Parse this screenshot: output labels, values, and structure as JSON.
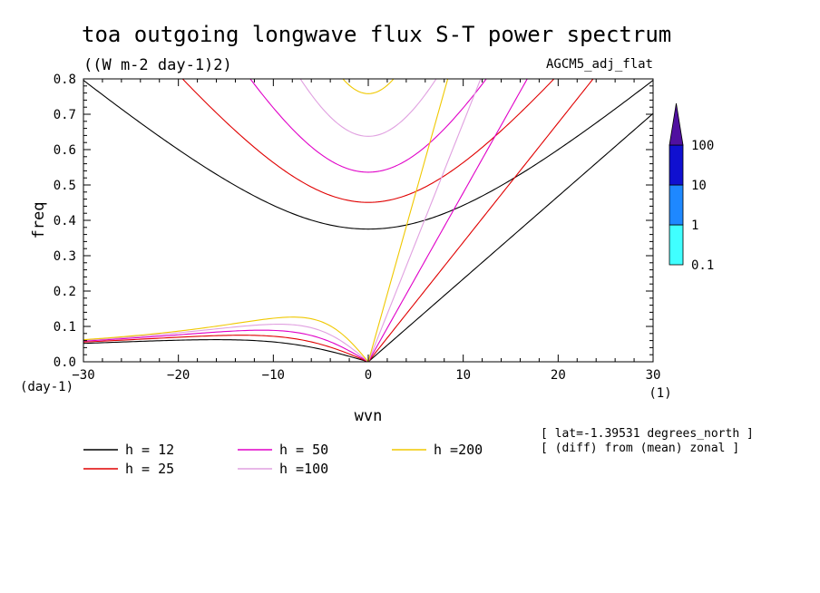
{
  "chart_data": {
    "type": "line",
    "title": "toa outgoing longwave flux S-T power spectrum",
    "subtitle": "((W m-2 day-1)2)",
    "dataset_label": "AGCM5_adj_flat",
    "xlabel": "wvn",
    "ylabel": "freq",
    "x_unit": "(1)",
    "y_unit": "(day-1)",
    "xlim": [
      -30,
      30
    ],
    "ylim": [
      0,
      0.8
    ],
    "x_ticks": [
      "−30",
      "−20",
      "−10",
      "0",
      "10",
      "20",
      "30"
    ],
    "y_ticks": [
      "0.0",
      "0.1",
      "0.2",
      "0.3",
      "0.4",
      "0.5",
      "0.6",
      "0.7",
      "0.8"
    ],
    "grid": false,
    "info_lines": [
      "[ lat=-1.39531 degrees_north ]",
      "[ (diff) from (mean) zonal ]"
    ],
    "series": [
      {
        "name": "h = 12",
        "color": "#000000",
        "h": 12
      },
      {
        "name": "h = 25",
        "color": "#e00000",
        "h": 25
      },
      {
        "name": "h = 50",
        "color": "#e000c8",
        "h": 50
      },
      {
        "name": "h =100",
        "color": "#e0a0e0",
        "h": 100
      },
      {
        "name": "h =200",
        "color": "#f0c800",
        "h": 200
      }
    ],
    "colorbar": {
      "levels": [
        "0.1",
        "1",
        "10",
        "100"
      ],
      "colors": [
        "#40ffff",
        "#1e88ff",
        "#1010d0",
        "#000090",
        "#5010a0"
      ]
    }
  }
}
